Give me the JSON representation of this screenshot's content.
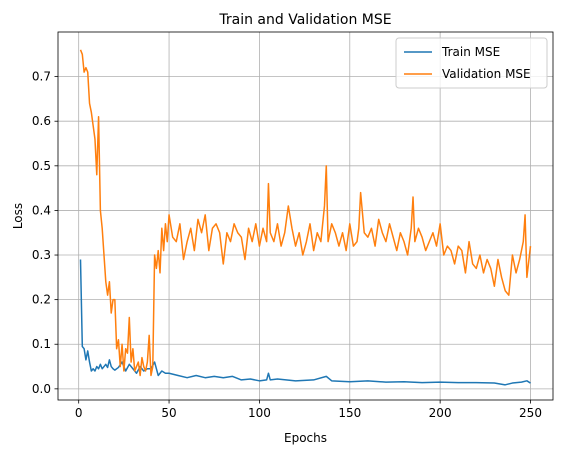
{
  "chart_data": {
    "type": "line",
    "title": "Train and Validation MSE",
    "xlabel": "Epochs",
    "ylabel": "Loss",
    "xlim": [
      -11.45,
      262.45
    ],
    "ylim": [
      -0.025,
      0.8
    ],
    "xticks": [
      0,
      50,
      100,
      150,
      200,
      250
    ],
    "yticks": [
      0.0,
      0.1,
      0.2,
      0.3,
      0.4,
      0.5,
      0.6,
      0.7
    ],
    "ytick_labels": [
      "0.0",
      "0.1",
      "0.2",
      "0.3",
      "0.4",
      "0.5",
      "0.6",
      "0.7"
    ],
    "grid": true,
    "legend_position": "top-right",
    "series": [
      {
        "name": "Train MSE",
        "color": "#1f77b4",
        "x": [
          1,
          2,
          3,
          4,
          5,
          6,
          7,
          8,
          9,
          10,
          11,
          12,
          13,
          14,
          15,
          16,
          17,
          18,
          19,
          20,
          22,
          24,
          26,
          28,
          30,
          32,
          34,
          36,
          38,
          40,
          42,
          44,
          46,
          48,
          50,
          55,
          60,
          65,
          70,
          75,
          80,
          85,
          90,
          95,
          100,
          104,
          105,
          106,
          110,
          120,
          130,
          137,
          140,
          150,
          160,
          170,
          180,
          190,
          200,
          210,
          220,
          230,
          236,
          240,
          245,
          248,
          250
        ],
        "values": [
          0.29,
          0.095,
          0.09,
          0.065,
          0.085,
          0.06,
          0.04,
          0.045,
          0.04,
          0.05,
          0.045,
          0.055,
          0.045,
          0.05,
          0.055,
          0.048,
          0.065,
          0.05,
          0.045,
          0.042,
          0.048,
          0.06,
          0.04,
          0.055,
          0.045,
          0.035,
          0.05,
          0.04,
          0.045,
          0.045,
          0.06,
          0.03,
          0.04,
          0.035,
          0.035,
          0.03,
          0.025,
          0.03,
          0.025,
          0.028,
          0.025,
          0.028,
          0.02,
          0.022,
          0.018,
          0.02,
          0.035,
          0.02,
          0.022,
          0.018,
          0.02,
          0.028,
          0.018,
          0.016,
          0.018,
          0.015,
          0.016,
          0.014,
          0.015,
          0.014,
          0.014,
          0.013,
          0.009,
          0.013,
          0.015,
          0.018,
          0.013
        ]
      },
      {
        "name": "Validation MSE",
        "color": "#ff7f0e",
        "x": [
          1,
          2,
          3,
          4,
          5,
          6,
          7,
          8,
          9,
          10,
          11,
          12,
          13,
          14,
          15,
          16,
          17,
          18,
          19,
          20,
          21,
          22,
          23,
          24,
          25,
          26,
          27,
          28,
          29,
          30,
          31,
          32,
          33,
          34,
          35,
          36,
          37,
          38,
          39,
          40,
          41,
          42,
          43,
          44,
          45,
          46,
          47,
          48,
          49,
          50,
          52,
          54,
          56,
          58,
          60,
          62,
          64,
          66,
          68,
          70,
          72,
          74,
          76,
          78,
          80,
          82,
          84,
          86,
          88,
          90,
          92,
          94,
          96,
          98,
          100,
          102,
          104,
          105,
          106,
          108,
          110,
          112,
          114,
          116,
          118,
          120,
          122,
          124,
          126,
          128,
          130,
          132,
          134,
          136,
          137,
          138,
          140,
          142,
          144,
          146,
          148,
          150,
          152,
          154,
          155,
          156,
          158,
          160,
          162,
          164,
          166,
          168,
          170,
          172,
          174,
          176,
          178,
          180,
          182,
          184,
          185,
          186,
          188,
          190,
          192,
          194,
          196,
          198,
          200,
          202,
          204,
          206,
          208,
          210,
          212,
          214,
          216,
          218,
          220,
          222,
          224,
          226,
          228,
          230,
          232,
          234,
          236,
          238,
          240,
          242,
          244,
          246,
          247,
          248,
          250
        ],
        "values": [
          0.76,
          0.75,
          0.71,
          0.72,
          0.71,
          0.64,
          0.62,
          0.59,
          0.56,
          0.48,
          0.61,
          0.4,
          0.36,
          0.3,
          0.24,
          0.21,
          0.24,
          0.17,
          0.2,
          0.2,
          0.09,
          0.11,
          0.05,
          0.1,
          0.04,
          0.09,
          0.08,
          0.16,
          0.06,
          0.09,
          0.04,
          0.05,
          0.06,
          0.03,
          0.07,
          0.05,
          0.04,
          0.06,
          0.12,
          0.03,
          0.05,
          0.3,
          0.27,
          0.31,
          0.26,
          0.36,
          0.31,
          0.37,
          0.33,
          0.39,
          0.34,
          0.33,
          0.37,
          0.29,
          0.33,
          0.36,
          0.31,
          0.38,
          0.35,
          0.39,
          0.31,
          0.36,
          0.37,
          0.35,
          0.28,
          0.35,
          0.33,
          0.37,
          0.35,
          0.34,
          0.29,
          0.36,
          0.33,
          0.37,
          0.32,
          0.36,
          0.33,
          0.46,
          0.35,
          0.33,
          0.37,
          0.32,
          0.35,
          0.41,
          0.36,
          0.32,
          0.35,
          0.3,
          0.33,
          0.37,
          0.31,
          0.35,
          0.33,
          0.41,
          0.5,
          0.33,
          0.37,
          0.35,
          0.32,
          0.35,
          0.31,
          0.37,
          0.32,
          0.33,
          0.36,
          0.44,
          0.35,
          0.34,
          0.36,
          0.32,
          0.38,
          0.35,
          0.33,
          0.37,
          0.34,
          0.31,
          0.35,
          0.33,
          0.3,
          0.36,
          0.43,
          0.33,
          0.36,
          0.34,
          0.31,
          0.33,
          0.35,
          0.32,
          0.37,
          0.3,
          0.32,
          0.31,
          0.28,
          0.32,
          0.31,
          0.26,
          0.33,
          0.28,
          0.27,
          0.3,
          0.26,
          0.29,
          0.27,
          0.23,
          0.29,
          0.25,
          0.22,
          0.21,
          0.3,
          0.26,
          0.29,
          0.33,
          0.39,
          0.25,
          0.32
        ]
      }
    ]
  }
}
